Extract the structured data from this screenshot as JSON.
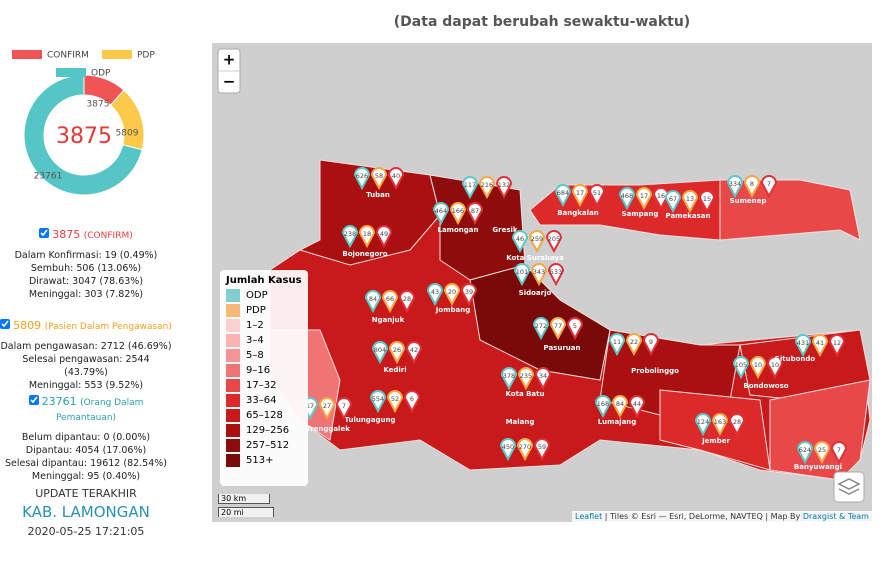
{
  "header": {
    "note": "(Data dapat berubah sewaktu-waktu)"
  },
  "chart_data": {
    "type": "pie",
    "categories": [
      "CONFIRM",
      "PDP",
      "ODP"
    ],
    "values": [
      3875,
      5809,
      23761
    ],
    "colors": [
      "#f05454",
      "#fcc94a",
      "#55c5c6"
    ]
  },
  "stats": {
    "confirm": {
      "total": "3875",
      "label": "(CONFIRM)",
      "lines": [
        "Dalam Konfirmasi: 19 (0.49%)",
        "Sembuh: 506 (13.06%)",
        "Dirawat: 3047 (78.63%)",
        "Meninggal: 303 (7.82%)"
      ]
    },
    "pdp": {
      "total": "5809",
      "label": "(Pasien Dalam Pengawasan)",
      "lines": [
        "Dalam pengawasan: 2712 (46.69%)",
        "Selesai pengawasan: 2544 (43.79%)",
        "Meninggal: 553 (9.52%)"
      ]
    },
    "odp": {
      "total": "23761",
      "label": "(Orang Dalam Pemantauan)",
      "lines": [
        "Belum dipantau: 0 (0.00%)",
        "Dipantau: 4054 (17.06%)",
        "Selesai dipantau: 19612 (82.54%)",
        "Meninggal: 95 (0.40%)"
      ]
    }
  },
  "update": {
    "title": "UPDATE TERAKHIR",
    "place": "KAB. LAMONGAN",
    "time": "2020-05-25 17:21:05"
  },
  "map": {
    "zoom_in": "+",
    "zoom_out": "−",
    "legend": {
      "title": "Jumlah Kasus",
      "items": [
        {
          "label": "ODP",
          "color": "#7fcfcf"
        },
        {
          "label": "PDP",
          "color": "#f6b97a"
        },
        {
          "label": "1–2",
          "color": "#fcd0d0"
        },
        {
          "label": "3–4",
          "color": "#f9b3b3"
        },
        {
          "label": "5–8",
          "color": "#f59494"
        },
        {
          "label": "9–16",
          "color": "#f07474"
        },
        {
          "label": "17–32",
          "color": "#e84848"
        },
        {
          "label": "33–64",
          "color": "#dc2a2a"
        },
        {
          "label": "65–128",
          "color": "#c81a1a"
        },
        {
          "label": "129–256",
          "color": "#aa1010"
        },
        {
          "label": "257–512",
          "color": "#8e0c0c"
        },
        {
          "label": "513+",
          "color": "#7a0a0a"
        }
      ]
    },
    "regions": [
      {
        "name": "Tuban",
        "markers": [
          "626",
          "58",
          "40"
        ]
      },
      {
        "name": "Bojonegoro",
        "markers": [
          "238",
          "18",
          "49"
        ]
      },
      {
        "name": "Lamongan",
        "markers": [
          "464",
          "166",
          "87"
        ]
      },
      {
        "name": "Gresik",
        "markers": [
          "117",
          "216",
          "132"
        ]
      },
      {
        "name": "Bangkalan",
        "markers": [
          "684",
          "17",
          "51"
        ]
      },
      {
        "name": "Sampang",
        "markers": [
          "468",
          "17",
          "16"
        ]
      },
      {
        "name": "Pamekasan",
        "markers": [
          "67",
          "13",
          "15"
        ]
      },
      {
        "name": "Sumenep",
        "markers": [
          "334",
          "8",
          "7"
        ]
      },
      {
        "name": "Kota Surabaya",
        "markers": [
          "46",
          "259",
          "205"
        ]
      },
      {
        "name": "Sidoarjo",
        "markers": [
          "101",
          "343",
          "533"
        ]
      },
      {
        "name": "Jombang",
        "markers": [
          "43",
          "20",
          "39"
        ]
      },
      {
        "name": "Nganjuk",
        "markers": [
          "84",
          "66",
          "28"
        ]
      },
      {
        "name": "Kediri",
        "markers": [
          "804",
          "26",
          "42"
        ]
      },
      {
        "name": "Kota Batu",
        "markers": [
          "378",
          "235",
          "34"
        ]
      },
      {
        "name": "Malang",
        "markers": [
          "450",
          "270",
          "59"
        ]
      },
      {
        "name": "Lumajang",
        "markers": [
          "168",
          "84",
          "44"
        ]
      },
      {
        "name": "Jember",
        "markers": [
          "124",
          "163",
          "28"
        ]
      },
      {
        "name": "Banyuwangi",
        "markers": [
          "624",
          "25",
          "7"
        ]
      },
      {
        "name": "Bondowoso",
        "markers": [
          "105",
          "10",
          "10"
        ]
      },
      {
        "name": "Situbondo",
        "markers": [
          "431",
          "41",
          "12"
        ]
      },
      {
        "name": "Probolinggo",
        "markers": [
          "11",
          "22",
          "9"
        ]
      },
      {
        "name": "Pasuruan",
        "markers": [
          "272",
          "77",
          "5"
        ]
      },
      {
        "name": "Tulungagung",
        "markers": [
          "554",
          "52",
          "6"
        ]
      },
      {
        "name": "Trenggalek",
        "markers": [
          "17",
          "27",
          "7"
        ]
      }
    ],
    "scale": {
      "km": "30 km",
      "mi": "20 mi"
    },
    "attribution": {
      "leaflet": "Leaflet",
      "tiles": " | Tiles © Esri — Esri, DeLorme, NAVTEQ | Map By ",
      "team": "Draxgist & Team"
    }
  }
}
